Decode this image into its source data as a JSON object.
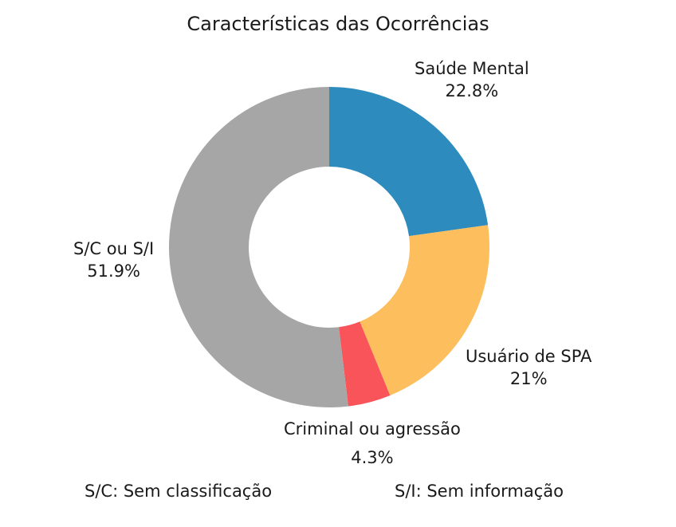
{
  "chart_data": {
    "type": "pie",
    "donut": true,
    "title": "Características das Ocorrências",
    "slices": [
      {
        "label": "Saúde Mental",
        "pct_label": "22.8%",
        "value": 22.8,
        "color": "#2e8bbd"
      },
      {
        "label": "Usuário de SPA",
        "pct_label": "21%",
        "value": 21.0,
        "color": "#fdbe5d"
      },
      {
        "label": "Criminal ou agressão",
        "pct_label": "4.3%",
        "value": 4.3,
        "color": "#f9545a"
      },
      {
        "label": "S/C ou S/I",
        "pct_label": "51.9%",
        "value": 51.9,
        "color": "#a6a6a6"
      }
    ],
    "start_angle": "12 o'clock",
    "direction": "clockwise",
    "footnotes": [
      "S/C: Sem classificação",
      "S/I: Sem informação"
    ]
  }
}
